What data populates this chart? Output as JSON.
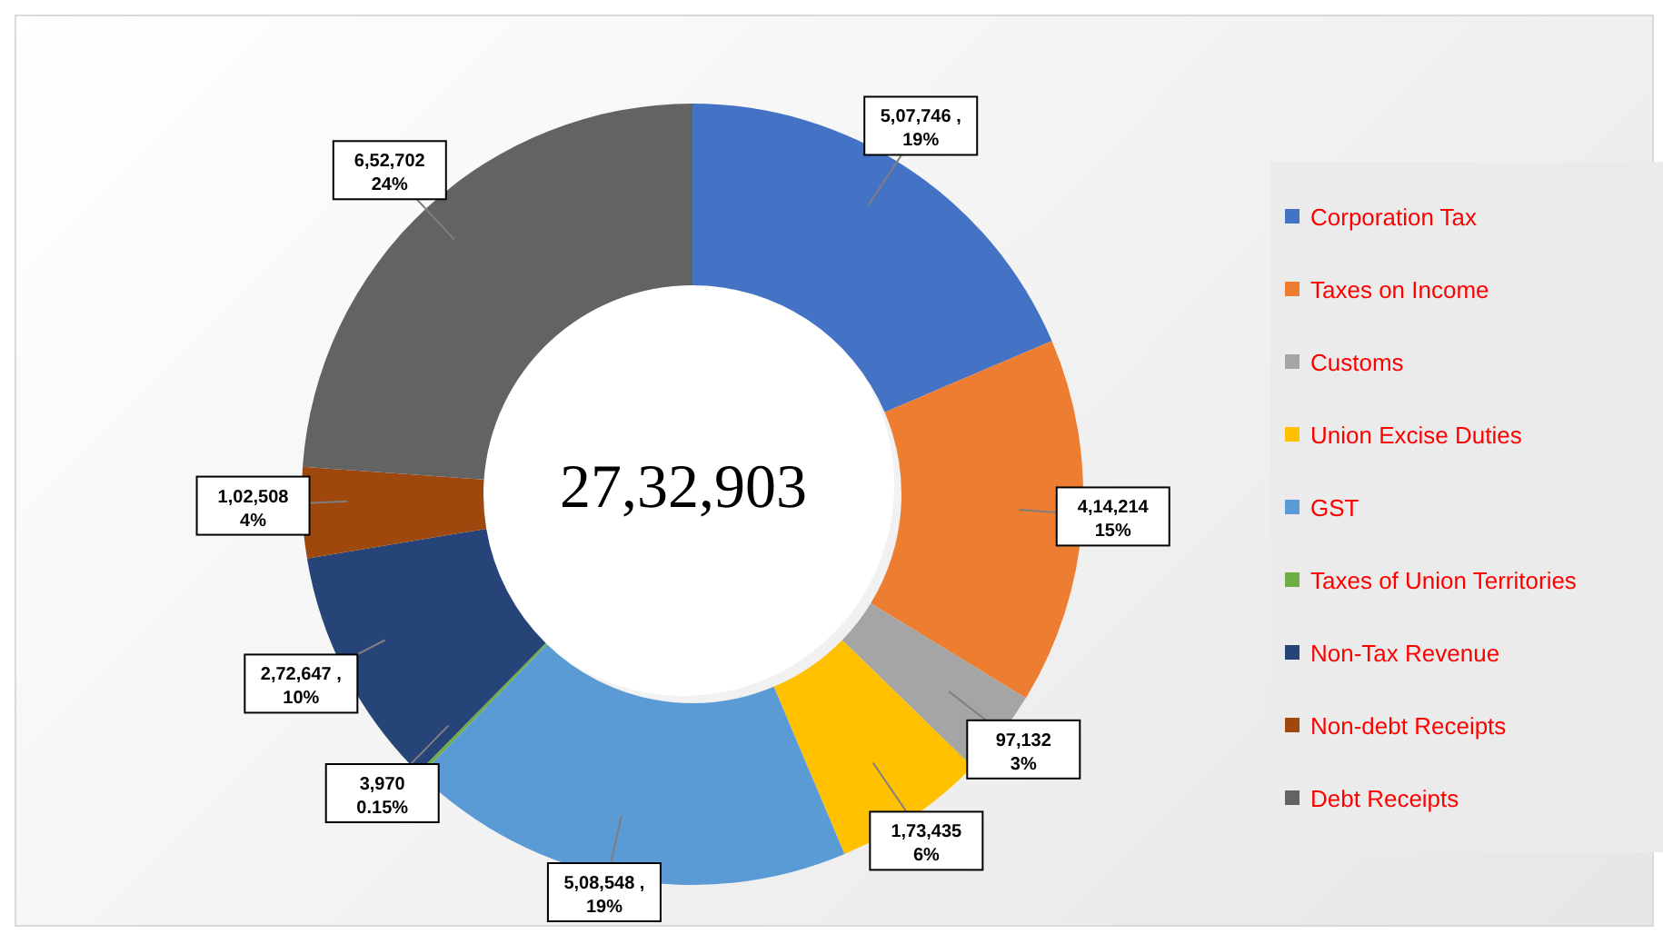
{
  "chart_data": {
    "type": "donut",
    "categories": [
      "Corporation Tax",
      "Taxes on Income",
      "Customs",
      "Union Excise Duties",
      "GST",
      "Taxes of Union Territories",
      "Non-Tax Revenue",
      "Non-debt Receipts",
      "Debt Receipts"
    ],
    "values": [
      507746,
      414214,
      97132,
      173435,
      508548,
      3970,
      272647,
      102508,
      652702
    ],
    "colors": [
      "#4472c4",
      "#ed7d31",
      "#a5a5a5",
      "#ffc000",
      "#5b9bd5",
      "#70ad47",
      "#264478",
      "#9e480e",
      "#636363"
    ],
    "value_labels": [
      "5,07,746 ,\n19%",
      "4,14,214\n15%",
      "97,132\n3%",
      "1,73,435\n6%",
      "5,08,548 ,\n19%",
      "3,970\n0.15%",
      "2,72,647 ,\n10%",
      "1,02,508\n4%",
      "6,52,702\n24%"
    ],
    "annotations": [
      "27,32,903"
    ],
    "legend": "right"
  }
}
